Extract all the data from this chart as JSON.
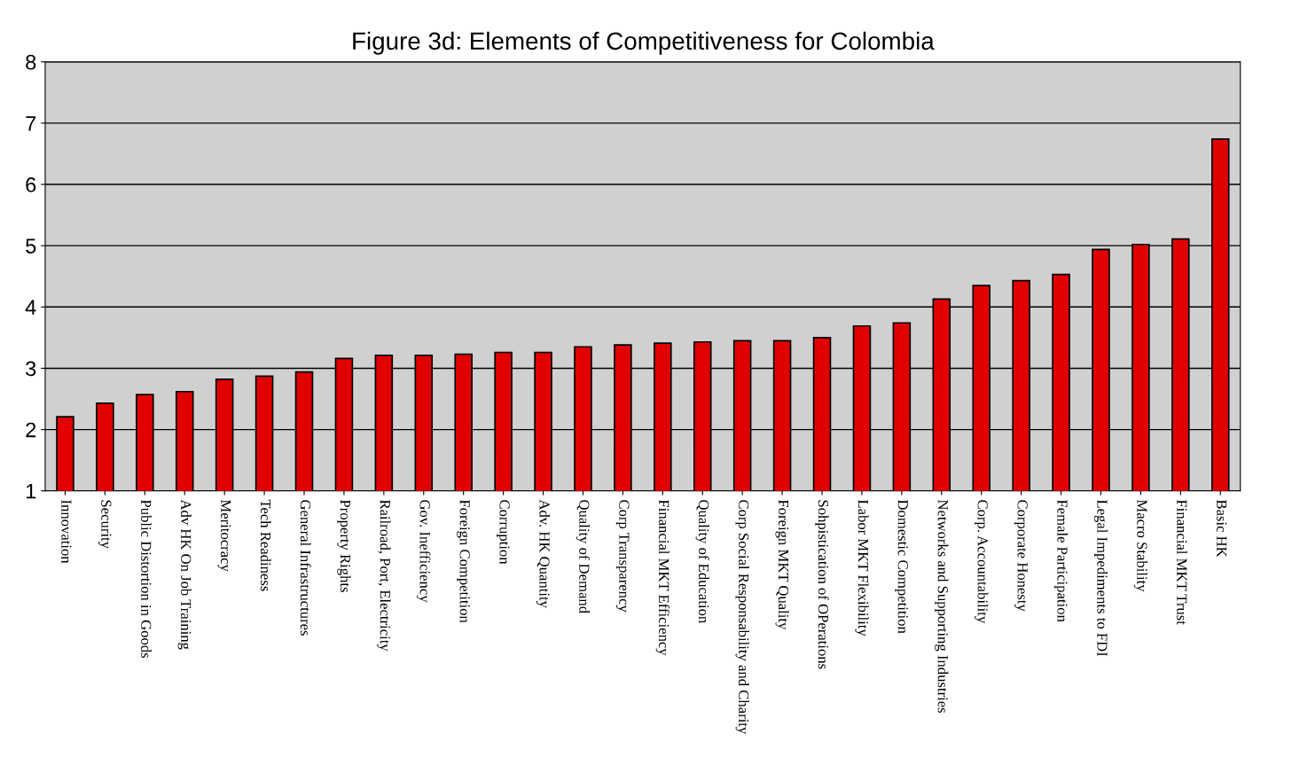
{
  "chart_data": {
    "type": "bar",
    "title": "Figure 3d: Elements of Competitiveness for Colombia",
    "categories": [
      "Innovation",
      "Security",
      "Public Distortion in Goods",
      "Adv HK On Job Training",
      "Meritocracy",
      "Tech Readiness",
      "General Infrastructures",
      "Property Rights",
      "Railroad, Port, Electricity",
      "Gov. Inefficiency",
      "Foreign Competition",
      "Corruption",
      "Adv. HK Quantity",
      "Quality of Demand",
      "Corp Transparency",
      "Financial MKT Efficiency",
      "Quality of Education",
      "Corp Social Responsability and Charity",
      "Foreign MKT Quality",
      "Sohpistication of OPerations",
      "Labor MKT Flexibility",
      "Domestic Competition",
      "Networks and Supporting Industries",
      "Corp. Accountability",
      "Corporate Honesty",
      "Female Participation",
      "Legal Impediments to FDI",
      "Macro Stability",
      "Financial MKT Trust",
      "Basic HK"
    ],
    "values": [
      2.21,
      2.43,
      2.57,
      2.62,
      2.82,
      2.87,
      2.94,
      3.16,
      3.21,
      3.21,
      3.23,
      3.26,
      3.26,
      3.35,
      3.38,
      3.41,
      3.43,
      3.45,
      3.45,
      3.5,
      3.69,
      3.74,
      4.13,
      4.35,
      4.43,
      4.53,
      4.94,
      5.02,
      5.11,
      6.74
    ],
    "color": "#e00000",
    "ylim": [
      1,
      8
    ],
    "yticks": [
      1,
      2,
      3,
      4,
      5,
      6,
      7,
      8
    ],
    "grid": "y"
  }
}
